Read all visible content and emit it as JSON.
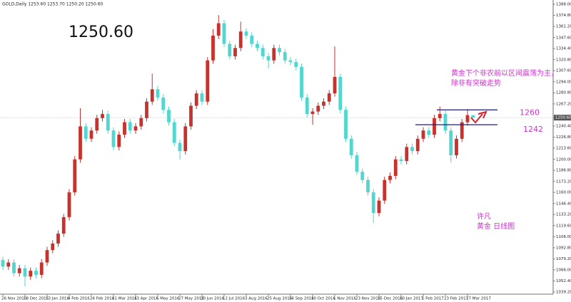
{
  "chart_data": {
    "type": "candlestick",
    "title": "GOLD,Daily 1253.60 1253.70 1250.20 1250.60",
    "last_price": {
      "value": 1250.6,
      "label": "1250.60"
    },
    "bull_color": "#c8322c",
    "bear_color": "#52d6d0",
    "level_color": "#1a1a80",
    "levels": [
      1260,
      1242
    ],
    "annotation": [
      "黄金下个非农前以区间震荡为主，",
      "除非有突破走势"
    ],
    "author_note": [
      "许凡",
      "黄金 日线图"
    ],
    "categories": [
      "26 Nov 2015",
      null,
      null,
      null,
      "18 Dec 2015",
      null,
      null,
      null,
      "13 Jan 2016",
      null,
      null,
      null,
      "4 Feb 2016",
      null,
      null,
      null,
      "26 Feb 2016",
      null,
      null,
      null,
      "21 Mar 2016",
      null,
      null,
      null,
      "13 Apr 2016",
      null,
      null,
      null,
      "5 May 2016",
      null,
      null,
      null,
      "27 May 2016",
      null,
      null,
      null,
      "20 Jun 2016",
      null,
      null,
      null,
      "12 Jul 2016",
      null,
      null,
      null,
      "3 Aug 2016",
      null,
      null,
      null,
      "25 Aug 2016",
      null,
      null,
      null,
      "16 Sep 2016",
      null,
      null,
      null,
      "10 Oct 2016",
      null,
      null,
      null,
      "1 Nov 2016",
      null,
      null,
      null,
      "23 Nov 2016",
      null,
      null,
      null,
      "15 Dec 2016",
      null,
      null,
      null,
      "10 Jan 2017",
      null,
      null,
      null,
      "1 Feb 2017",
      null,
      null,
      null,
      "23 Feb 2017",
      null,
      null,
      null,
      "17 Mar 2017",
      null
    ],
    "open": [
      1078,
      1070,
      1075,
      1062,
      1068,
      1058,
      1065,
      1060,
      1075,
      1090,
      1098,
      1110,
      1130,
      1160,
      1200,
      1240,
      1225,
      1235,
      1250,
      1255,
      1235,
      1215,
      1230,
      1245,
      1235,
      1240,
      1250,
      1270,
      1285,
      1275,
      1260,
      1245,
      1220,
      1210,
      1240,
      1265,
      1280,
      1270,
      1320,
      1350,
      1365,
      1340,
      1325,
      1335,
      1355,
      1350,
      1340,
      1335,
      1325,
      1320,
      1335,
      1330,
      1320,
      1318,
      1312,
      1275,
      1255,
      1258,
      1265,
      1270,
      1280,
      1300,
      1260,
      1225,
      1205,
      1185,
      1175,
      1160,
      1135,
      1150,
      1175,
      1180,
      1200,
      1198,
      1215,
      1210,
      1225,
      1235,
      1230,
      1250,
      1255,
      1235,
      1205,
      1225,
      1245,
      1253.6
    ],
    "high": [
      1082,
      1079,
      1079,
      1072,
      1072,
      1069,
      1069,
      1079,
      1094,
      1102,
      1114,
      1134,
      1164,
      1204,
      1262,
      1244,
      1239,
      1254,
      1260,
      1259,
      1239,
      1234,
      1249,
      1249,
      1244,
      1254,
      1274,
      1304,
      1289,
      1279,
      1264,
      1249,
      1224,
      1244,
      1269,
      1284,
      1284,
      1324,
      1358,
      1375,
      1369,
      1344,
      1339,
      1367,
      1359,
      1354,
      1344,
      1339,
      1329,
      1339,
      1339,
      1334,
      1324,
      1322,
      1316,
      1279,
      1262,
      1269,
      1274,
      1284,
      1337,
      1304,
      1264,
      1229,
      1209,
      1189,
      1179,
      1164,
      1154,
      1179,
      1184,
      1204,
      1204,
      1219,
      1219,
      1229,
      1239,
      1239,
      1254,
      1264,
      1259,
      1239,
      1229,
      1249,
      1261,
      1253.7
    ],
    "low": [
      1066,
      1066,
      1058,
      1058,
      1046,
      1054,
      1056,
      1056,
      1071,
      1086,
      1094,
      1106,
      1126,
      1156,
      1196,
      1221,
      1221,
      1231,
      1246,
      1231,
      1211,
      1211,
      1226,
      1231,
      1231,
      1236,
      1246,
      1266,
      1271,
      1256,
      1241,
      1216,
      1200,
      1206,
      1236,
      1261,
      1266,
      1266,
      1316,
      1346,
      1336,
      1321,
      1321,
      1331,
      1346,
      1336,
      1331,
      1321,
      1310,
      1316,
      1326,
      1316,
      1314,
      1308,
      1271,
      1251,
      1242,
      1254,
      1261,
      1266,
      1276,
      1256,
      1221,
      1201,
      1181,
      1171,
      1156,
      1123,
      1131,
      1146,
      1171,
      1176,
      1194,
      1194,
      1206,
      1206,
      1221,
      1226,
      1226,
      1246,
      1231,
      1196,
      1201,
      1221,
      1241,
      1250.2
    ],
    "close": [
      1070,
      1075,
      1062,
      1068,
      1058,
      1065,
      1060,
      1075,
      1090,
      1098,
      1110,
      1130,
      1160,
      1200,
      1240,
      1225,
      1235,
      1250,
      1255,
      1235,
      1215,
      1230,
      1245,
      1235,
      1240,
      1250,
      1270,
      1285,
      1275,
      1260,
      1245,
      1220,
      1210,
      1240,
      1265,
      1280,
      1270,
      1320,
      1350,
      1365,
      1340,
      1325,
      1335,
      1355,
      1350,
      1340,
      1335,
      1325,
      1320,
      1335,
      1330,
      1320,
      1318,
      1312,
      1275,
      1255,
      1258,
      1265,
      1270,
      1280,
      1300,
      1260,
      1225,
      1205,
      1185,
      1175,
      1160,
      1135,
      1150,
      1175,
      1180,
      1200,
      1198,
      1215,
      1210,
      1225,
      1235,
      1230,
      1250,
      1255,
      1235,
      1205,
      1225,
      1245,
      1253.6,
      1250.6
    ],
    "ylim": [
      1036.6,
      1393.2
    ],
    "yticks": [
      {
        "value": 1388,
        "label": "1388.00"
      },
      {
        "value": 1374.8,
        "label": "1374.80"
      },
      {
        "value": 1361.2,
        "label": "1361.20"
      },
      {
        "value": 1347.6,
        "label": "1347.60"
      },
      {
        "value": 1334.4,
        "label": "1334.40"
      },
      {
        "value": 1320.8,
        "label": "1320.80"
      },
      {
        "value": 1307.6,
        "label": "1307.60"
      },
      {
        "value": 1294,
        "label": "1294.00"
      },
      {
        "value": 1280.8,
        "label": "1280.80"
      },
      {
        "value": 1267.2,
        "label": "1267.20"
      },
      {
        "value": 1240.4,
        "label": "1240.40"
      },
      {
        "value": 1226.8,
        "label": "1226.80"
      },
      {
        "value": 1213.6,
        "label": "1213.60"
      },
      {
        "value": 1200,
        "label": "1200.00"
      },
      {
        "value": 1186.8,
        "label": "1186.80"
      },
      {
        "value": 1173.2,
        "label": "1173.20"
      },
      {
        "value": 1160,
        "label": "1160.00"
      },
      {
        "value": 1146.4,
        "label": "1146.40"
      },
      {
        "value": 1133.2,
        "label": "1133.20"
      },
      {
        "value": 1119.6,
        "label": "1119.60"
      },
      {
        "value": 1106,
        "label": "1106.00"
      },
      {
        "value": 1092.8,
        "label": "1092.80"
      },
      {
        "value": 1079.2,
        "label": "1079.20"
      },
      {
        "value": 1066,
        "label": "1066.00"
      },
      {
        "value": 1052.4,
        "label": "1052.40"
      },
      {
        "value": 1039.2,
        "label": "1039.20"
      }
    ],
    "grid": false
  }
}
